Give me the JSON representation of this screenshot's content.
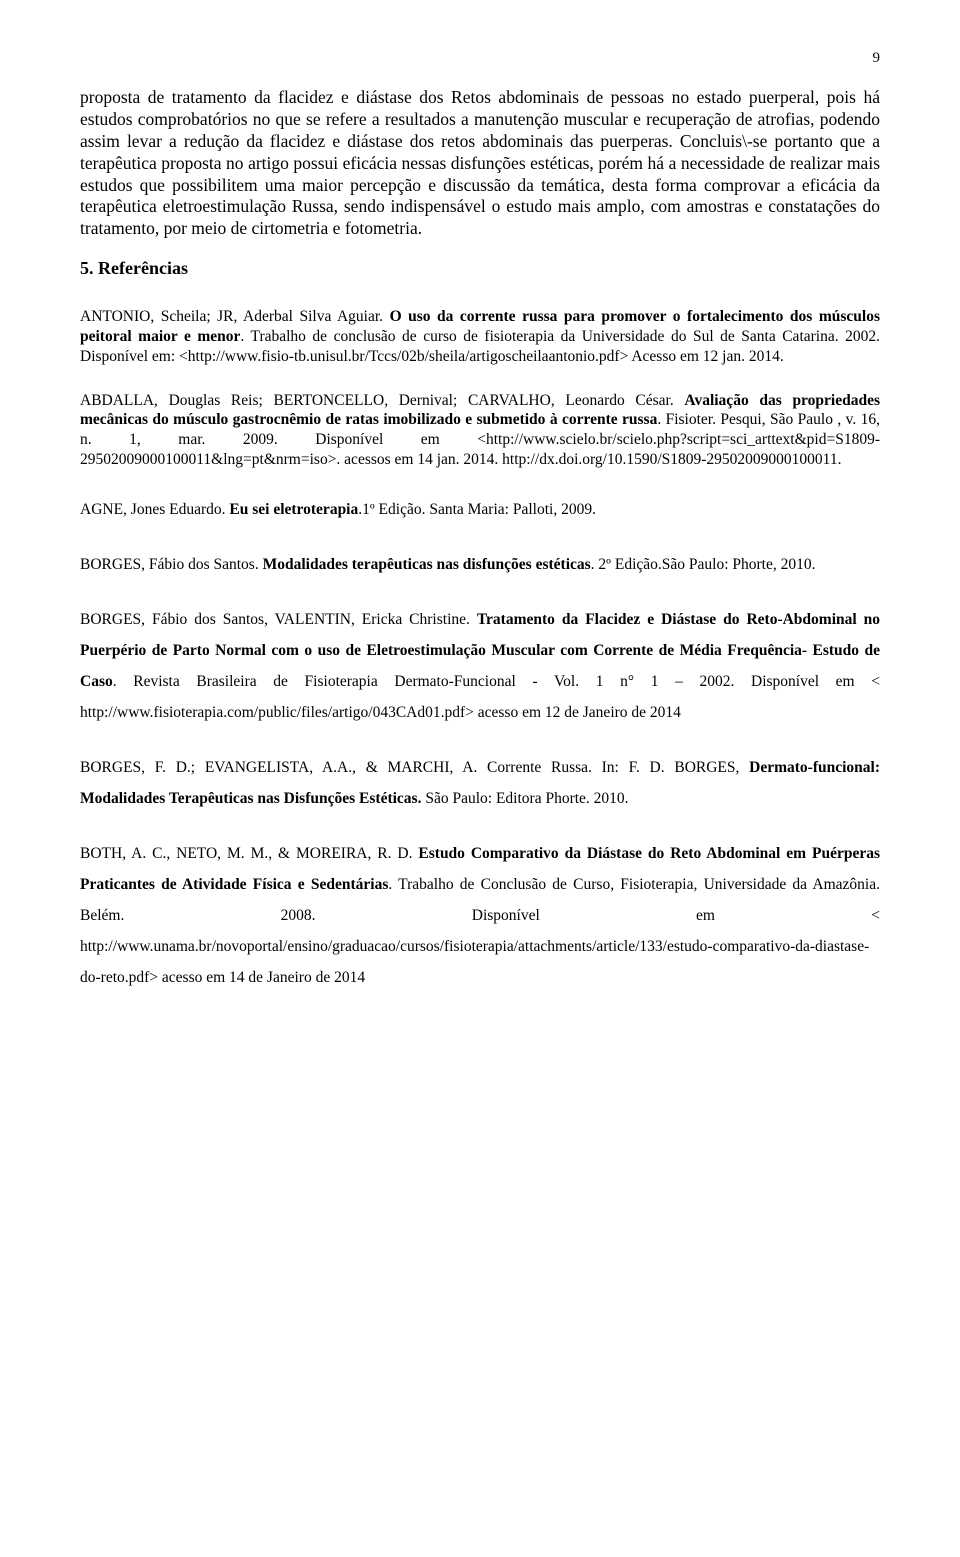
{
  "page": {
    "number": "9",
    "background_color": "#ffffff",
    "text_color": "#000000",
    "body_fontsize": 17.5,
    "ref_fontsize": 15.5
  },
  "body": {
    "p1": "proposta de tratamento da flacidez e diástase dos Retos abdominais de pessoas no estado puerperal, pois há estudos comprobatórios no que se refere a resultados a manutenção muscular e recuperação de atrofias, podendo assim levar a redução da flacidez e diástase dos retos abdominais das puerperas. Concluis\\-se portanto que a terapêutica proposta no artigo possui eficácia nessas disfunções estéticas, porém há a necessidade de realizar mais estudos que possibilitem uma maior percepção e discussão da temática, desta forma comprovar a eficácia da terapêutica eletroestimulação Russa, sendo indispensável o estudo mais amplo, com amostras e constatações do tratamento, por meio de cirtometria e fotometria."
  },
  "section": {
    "heading": "5. Referências"
  },
  "refs": {
    "r1a": "ANTONIO, Scheila; JR, Aderbal Silva Aguiar. ",
    "r1b": "O uso da corrente russa para promover o fortalecimento dos músculos peitoral maior e menor",
    "r1c": ". Trabalho de conclusão de curso de fisioterapia da Universidade do Sul de Santa Catarina. 2002. Disponível em: <http://www.fisio-tb.unisul.br/Tccs/02b/sheila/artigoscheilaantonio.pdf> Acesso em 12 jan. 2014.",
    "r2a": "ABDALLA, Douglas Reis; BERTONCELLO, Dernival; CARVALHO, Leonardo César. ",
    "r2b": "Avaliação das propriedades mecânicas do músculo gastrocnêmio de ratas imobilizado e submetido à corrente russa",
    "r2c": ". Fisioter. Pesqui, São Paulo , v. 16, n. 1, mar. 2009. Disponível em <http://www.scielo.br/scielo.php?script=sci_arttext&pid=S1809-29502009000100011&lng=pt&nrm=iso>. acessos em 14 jan. 2014. http://dx.doi.org/10.1590/S1809-29502009000100011.",
    "r3a": "AGNE, Jones Eduardo. ",
    "r3b": "Eu sei eletroterapia",
    "r3c": ".1º Edição. Santa Maria: Palloti, 2009.",
    "r4a": "BORGES, Fábio dos Santos. ",
    "r4b": "Modalidades terapêuticas nas disfunções estéticas",
    "r4c": ". 2º Edição.São Paulo: Phorte, 2010.",
    "r5a": "BORGES, Fábio dos Santos, VALENTIN, Ericka Christine. ",
    "r5b": "Tratamento da Flacidez e Diástase do Reto-Abdominal no Puerpério de Parto Normal com o uso de Eletroestimulação Muscular com Corrente de Média Frequência- Estudo de Caso",
    "r5c": ". Revista Brasileira de Fisioterapia Dermato-Funcional - Vol. 1 n° 1 – 2002. Disponível em < http://www.fisioterapia.com/public/files/artigo/043CAd01.pdf> acesso em 12 de Janeiro de 2014",
    "r6a": "BORGES, F. D.; EVANGELISTA, A.A., & MARCHI, A. Corrente Russa. In: F. D. BORGES, ",
    "r6b": "Dermato-funcional: Modalidades Terapêuticas nas Disfunções Estéticas.",
    "r6c": " São Paulo: Editora Phorte. 2010.",
    "r7a": "BOTH, A. C., NETO, M. M., & MOREIRA, R. D. ",
    "r7b": "Estudo Comparativo da Diástase do Reto Abdominal em Puérperas Praticantes de Atividade Física e Sedentárias",
    "r7c": ". Trabalho de Conclusão de Curso, Fisioterapia, Universidade da Amazônia. Belém. 2008. Disponível em < http://www.unama.br/novoportal/ensino/graduacao/cursos/fisioterapia/attachments/article/133/estudo-comparativo-da-diastase-do-reto.pdf> acesso em 14 de Janeiro de 2014"
  }
}
